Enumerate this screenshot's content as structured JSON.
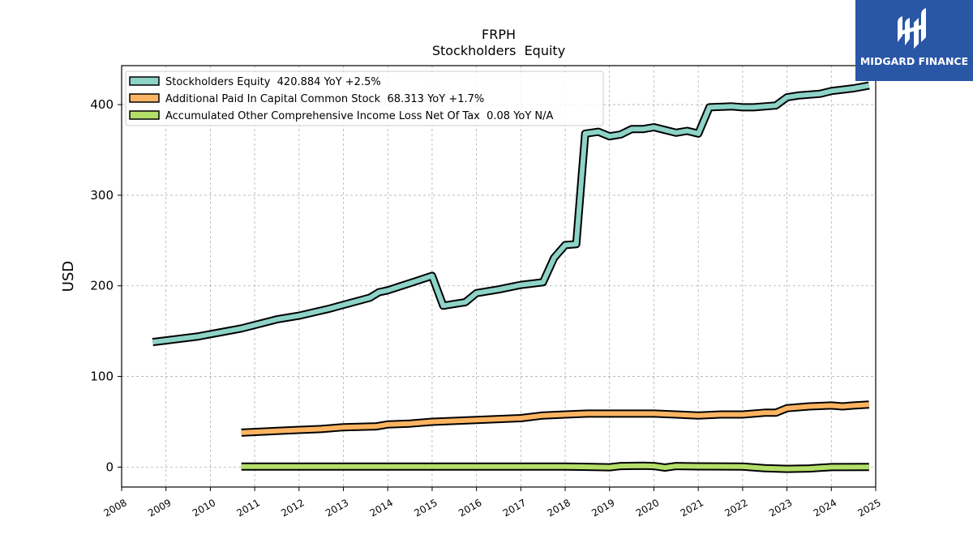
{
  "brand": {
    "name": "MIDGARD FINANCE",
    "logo_icon": "midgard-m-logo",
    "background": "#2a56a6"
  },
  "chart_data": {
    "type": "line",
    "title": "FRPH",
    "subtitle": "Stockholders  Equity",
    "ylabel": "USD",
    "xlabel": "",
    "xlim": [
      2008,
      2025
    ],
    "ylim": [
      -22,
      443
    ],
    "x_ticks": [
      "2008",
      "2009",
      "2010",
      "2011",
      "2012",
      "2013",
      "2014",
      "2015",
      "2016",
      "2017",
      "2018",
      "2019",
      "2020",
      "2021",
      "2022",
      "2023",
      "2024",
      "2025"
    ],
    "y_ticks": [
      "0",
      "100",
      "200",
      "300",
      "400"
    ],
    "grid": true,
    "legend_position": "top-left",
    "series": [
      {
        "name": "Stockholders Equity  420.884 YoY +2.5%",
        "color": "#8dd3c7",
        "x": [
          2008.7,
          2009.7,
          2010.7,
          2011.5,
          2012.0,
          2012.7,
          2013.0,
          2013.6,
          2013.8,
          2014.0,
          2014.5,
          2015.0,
          2015.25,
          2015.5,
          2015.75,
          2016.0,
          2016.5,
          2017.0,
          2017.5,
          2017.75,
          2018.0,
          2018.25,
          2018.45,
          2018.75,
          2019.0,
          2019.25,
          2019.5,
          2019.75,
          2020.0,
          2020.25,
          2020.5,
          2020.75,
          2021.0,
          2021.25,
          2021.75,
          2022.0,
          2022.25,
          2022.5,
          2022.75,
          2023.0,
          2023.25,
          2023.75,
          2024.0,
          2024.5,
          2024.85
        ],
        "values": [
          138,
          144,
          153,
          163,
          167,
          175,
          179,
          187,
          193,
          195,
          203,
          211,
          178,
          180,
          182,
          192,
          196,
          201,
          204,
          231,
          245,
          246,
          368,
          370,
          365,
          367,
          373,
          373,
          375,
          372,
          369,
          371,
          368,
          397,
          398,
          397,
          397,
          398,
          399,
          408,
          410,
          412,
          415,
          418,
          421
        ]
      },
      {
        "name": "Additional Paid In Capital Common Stock  68.313 YoY +1.7%",
        "color": "#fdb462",
        "x": [
          2010.7,
          2011.5,
          2012.0,
          2012.5,
          2013.0,
          2013.75,
          2014.0,
          2014.5,
          2015.0,
          2015.5,
          2016.0,
          2016.5,
          2017.0,
          2017.5,
          2018.0,
          2018.5,
          2019.0,
          2019.5,
          2020.0,
          2020.5,
          2021.0,
          2021.5,
          2022.0,
          2022.5,
          2022.75,
          2023.0,
          2023.5,
          2024.0,
          2024.25,
          2024.5,
          2024.85
        ],
        "values": [
          38,
          40,
          41,
          42,
          44,
          45,
          47,
          48,
          50,
          51,
          52,
          53,
          54,
          57,
          58,
          59,
          59,
          59,
          59,
          58,
          57,
          58,
          58,
          60,
          60,
          65,
          67,
          68,
          67,
          68,
          69
        ]
      },
      {
        "name": "Accumulated Other Comprehensive Income Loss Net Of Tax  0.08 YoY N/A",
        "color": "#b3de69",
        "x": [
          2010.7,
          2012.0,
          2014.0,
          2016.0,
          2018.0,
          2018.5,
          2019.0,
          2019.25,
          2019.75,
          2020.0,
          2020.25,
          2020.5,
          2021.0,
          2022.0,
          2022.5,
          2023.0,
          2023.5,
          2024.0,
          2024.85
        ],
        "values": [
          0.5,
          0.5,
          0.5,
          0.5,
          0.5,
          0.3,
          -0.2,
          1.2,
          1.5,
          1.2,
          -0.5,
          1.2,
          0.8,
          0.5,
          -1.2,
          -2.0,
          -1.5,
          0.0,
          0.08
        ]
      }
    ]
  }
}
